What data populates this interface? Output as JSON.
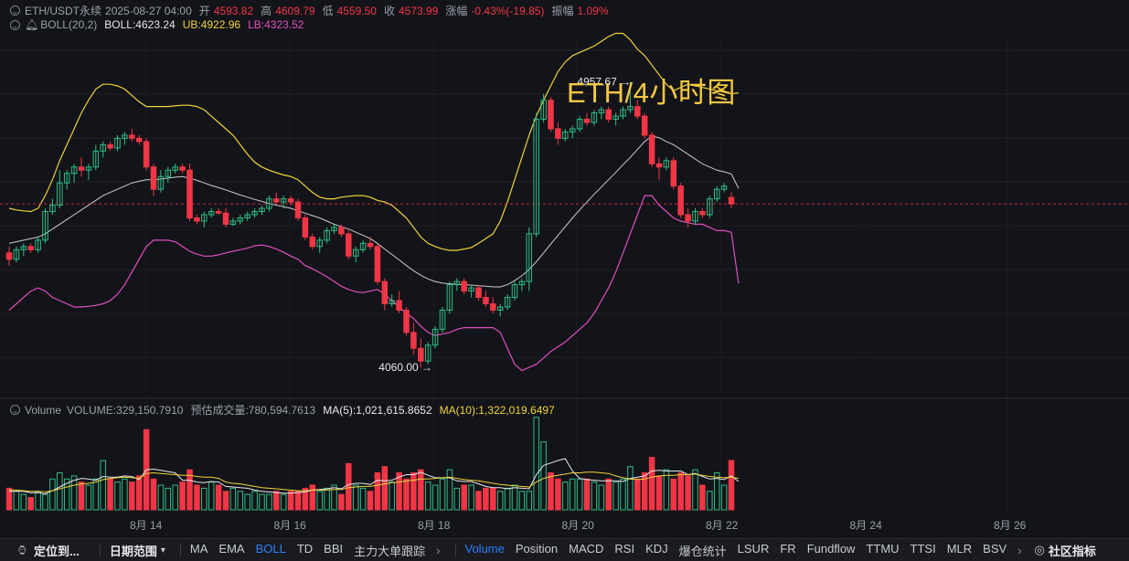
{
  "header": {
    "symbol": "ETH/USDT永续",
    "datetime": "2025-08-27 04:00",
    "open_label": "开",
    "open": "4593.82",
    "high_label": "高",
    "high": "4609.79",
    "low_label": "低",
    "low": "4559.50",
    "close_label": "收",
    "close": "4573.99",
    "change_label": "涨幅",
    "change": "-0.43%(-19.85)",
    "amp_label": "振幅",
    "amp": "1.09%"
  },
  "boll": {
    "label": "BOLL(20,2)",
    "boll_text": "BOLL:4623.24",
    "ub_text": "UB:4922.96",
    "lb_text": "LB:4323.52",
    "colors": {
      "mid": "#c9ccd2",
      "ub": "#f0d23c",
      "lb": "#e04fbf"
    }
  },
  "title": "ETH/4小时图",
  "annotations": {
    "high": "4957.67",
    "low": "4060.00"
  },
  "volume": {
    "label": "Volume",
    "vol_text": "VOLUME:329,150.7910",
    "est_text": "预估成交量:780,594.7613",
    "ma5_text": "MA(5):1,021,615.8652",
    "ma10_text": "MA(10):1,322,019.6497"
  },
  "x_labels": [
    "8月 14",
    "8月 16",
    "8月 18",
    "8月 20",
    "8月 22",
    "8月 24",
    "8月 26"
  ],
  "bottom_bar": {
    "locate": "定位到...",
    "range": "日期范围",
    "indicators": [
      "MA",
      "EMA",
      "BOLL",
      "TD",
      "BBI",
      "主力大单跟踪"
    ],
    "subindicators": [
      "Volume",
      "Position",
      "MACD",
      "RSI",
      "KDJ",
      "爆仓统计",
      "LSUR",
      "FR",
      "Fundflow",
      "TTMU",
      "TTSI",
      "MLR",
      "BSV"
    ],
    "active_main": "BOLL",
    "active_sub": "Volume",
    "community": "社区指标"
  },
  "chart_data": {
    "type": "candlestick",
    "title": "ETH/4小时图",
    "interval": "4h",
    "candles": [
      [
        4420,
        4440,
        4380,
        4400
      ],
      [
        4400,
        4440,
        4390,
        4430
      ],
      [
        4430,
        4450,
        4410,
        4440
      ],
      [
        4440,
        4450,
        4420,
        4430
      ],
      [
        4430,
        4470,
        4420,
        4460
      ],
      [
        4460,
        4560,
        4450,
        4550
      ],
      [
        4550,
        4590,
        4540,
        4570
      ],
      [
        4570,
        4680,
        4560,
        4640
      ],
      [
        4640,
        4680,
        4620,
        4670
      ],
      [
        4670,
        4700,
        4640,
        4690
      ],
      [
        4690,
        4720,
        4660,
        4680
      ],
      [
        4680,
        4700,
        4650,
        4690
      ],
      [
        4690,
        4760,
        4680,
        4740
      ],
      [
        4740,
        4770,
        4720,
        4760
      ],
      [
        4760,
        4770,
        4740,
        4750
      ],
      [
        4750,
        4790,
        4740,
        4780
      ],
      [
        4780,
        4800,
        4760,
        4790
      ],
      [
        4790,
        4810,
        4770,
        4780
      ],
      [
        4780,
        4790,
        4760,
        4770
      ],
      [
        4770,
        4780,
        4680,
        4690
      ],
      [
        4690,
        4700,
        4600,
        4620
      ],
      [
        4620,
        4680,
        4610,
        4660
      ],
      [
        4660,
        4690,
        4640,
        4680
      ],
      [
        4680,
        4700,
        4670,
        4690
      ],
      [
        4690,
        4700,
        4670,
        4680
      ],
      [
        4680,
        4700,
        4520,
        4530
      ],
      [
        4530,
        4540,
        4510,
        4520
      ],
      [
        4520,
        4550,
        4500,
        4540
      ],
      [
        4540,
        4560,
        4530,
        4550
      ],
      [
        4550,
        4560,
        4540,
        4545
      ],
      [
        4545,
        4560,
        4500,
        4510
      ],
      [
        4510,
        4530,
        4505,
        4520
      ],
      [
        4520,
        4540,
        4510,
        4530
      ],
      [
        4530,
        4550,
        4520,
        4540
      ],
      [
        4540,
        4560,
        4530,
        4550
      ],
      [
        4550,
        4570,
        4540,
        4560
      ],
      [
        4560,
        4600,
        4550,
        4590
      ],
      [
        4590,
        4610,
        4570,
        4580
      ],
      [
        4580,
        4600,
        4560,
        4590
      ],
      [
        4590,
        4600,
        4570,
        4580
      ],
      [
        4580,
        4590,
        4520,
        4530
      ],
      [
        4530,
        4540,
        4460,
        4470
      ],
      [
        4470,
        4480,
        4430,
        4440
      ],
      [
        4440,
        4470,
        4420,
        4460
      ],
      [
        4460,
        4500,
        4450,
        4490
      ],
      [
        4490,
        4510,
        4480,
        4500
      ],
      [
        4500,
        4510,
        4470,
        4480
      ],
      [
        4480,
        4490,
        4400,
        4410
      ],
      [
        4410,
        4440,
        4390,
        4430
      ],
      [
        4430,
        4460,
        4420,
        4450
      ],
      [
        4450,
        4470,
        4430,
        4440
      ],
      [
        4440,
        4450,
        4320,
        4330
      ],
      [
        4330,
        4340,
        4240,
        4260
      ],
      [
        4260,
        4290,
        4250,
        4270
      ],
      [
        4270,
        4300,
        4230,
        4240
      ],
      [
        4240,
        4250,
        4160,
        4170
      ],
      [
        4170,
        4200,
        4100,
        4120
      ],
      [
        4120,
        4150,
        4060,
        4080
      ],
      [
        4080,
        4140,
        4070,
        4130
      ],
      [
        4130,
        4190,
        4120,
        4180
      ],
      [
        4180,
        4250,
        4170,
        4240
      ],
      [
        4240,
        4330,
        4230,
        4320
      ],
      [
        4320,
        4340,
        4300,
        4330
      ],
      [
        4330,
        4340,
        4290,
        4300
      ],
      [
        4300,
        4320,
        4280,
        4310
      ],
      [
        4310,
        4320,
        4270,
        4280
      ],
      [
        4280,
        4300,
        4250,
        4260
      ],
      [
        4260,
        4280,
        4230,
        4240
      ],
      [
        4240,
        4260,
        4220,
        4250
      ],
      [
        4250,
        4290,
        4240,
        4280
      ],
      [
        4280,
        4330,
        4270,
        4320
      ],
      [
        4320,
        4340,
        4300,
        4330
      ],
      [
        4330,
        4500,
        4300,
        4480
      ],
      [
        4480,
        4860,
        4470,
        4840
      ],
      [
        4840,
        4920,
        4830,
        4900
      ],
      [
        4900,
        4910,
        4800,
        4810
      ],
      [
        4810,
        4830,
        4760,
        4780
      ],
      [
        4780,
        4810,
        4770,
        4800
      ],
      [
        4800,
        4820,
        4780,
        4810
      ],
      [
        4810,
        4850,
        4800,
        4840
      ],
      [
        4840,
        4860,
        4820,
        4830
      ],
      [
        4830,
        4870,
        4820,
        4860
      ],
      [
        4860,
        4880,
        4840,
        4870
      ],
      [
        4870,
        4880,
        4830,
        4840
      ],
      [
        4840,
        4860,
        4820,
        4850
      ],
      [
        4850,
        4880,
        4840,
        4870
      ],
      [
        4870,
        4958,
        4860,
        4880
      ],
      [
        4880,
        4900,
        4840,
        4850
      ],
      [
        4850,
        4860,
        4780,
        4790
      ],
      [
        4790,
        4800,
        4690,
        4700
      ],
      [
        4700,
        4720,
        4650,
        4690
      ],
      [
        4690,
        4720,
        4680,
        4710
      ],
      [
        4710,
        4720,
        4620,
        4630
      ],
      [
        4630,
        4640,
        4530,
        4540
      ],
      [
        4540,
        4560,
        4500,
        4520
      ],
      [
        4520,
        4560,
        4510,
        4550
      ],
      [
        4550,
        4560,
        4530,
        4540
      ],
      [
        4540,
        4600,
        4530,
        4590
      ],
      [
        4590,
        4630,
        4580,
        4620
      ],
      [
        4620,
        4640,
        4610,
        4630
      ],
      [
        4594,
        4610,
        4560,
        4574
      ]
    ],
    "boll_mid": [
      4450,
      4455,
      4460,
      4465,
      4470,
      4480,
      4495,
      4510,
      4525,
      4540,
      4555,
      4570,
      4585,
      4600,
      4610,
      4620,
      4630,
      4640,
      4645,
      4650,
      4650,
      4652,
      4655,
      4658,
      4660,
      4655,
      4648,
      4640,
      4632,
      4625,
      4618,
      4610,
      4602,
      4595,
      4588,
      4582,
      4575,
      4570,
      4565,
      4560,
      4552,
      4545,
      4537,
      4530,
      4520,
      4510,
      4502,
      4495,
      4485,
      4475,
      4465,
      4450,
      4432,
      4415,
      4398,
      4380,
      4364,
      4350,
      4338,
      4330,
      4325,
      4323,
      4321,
      4320,
      4319,
      4317,
      4315,
      4313,
      4313,
      4320,
      4333,
      4348,
      4368,
      4392,
      4420,
      4448,
      4475,
      4502,
      4530,
      4555,
      4580,
      4604,
      4627,
      4650,
      4673,
      4697,
      4720,
      4745,
      4770,
      4787,
      4782,
      4770,
      4760,
      4745,
      4730,
      4715,
      4700,
      4690,
      4680,
      4675,
      4668,
      4623
    ],
    "boll_ub": [
      4560,
      4555,
      4552,
      4550,
      4560,
      4600,
      4650,
      4710,
      4760,
      4810,
      4860,
      4900,
      4935,
      4950,
      4950,
      4945,
      4935,
      4915,
      4895,
      4880,
      4880,
      4880,
      4880,
      4882,
      4884,
      4884,
      4880,
      4870,
      4850,
      4830,
      4810,
      4790,
      4760,
      4730,
      4705,
      4690,
      4680,
      4672,
      4665,
      4660,
      4650,
      4630,
      4610,
      4595,
      4590,
      4590,
      4595,
      4598,
      4600,
      4600,
      4595,
      4585,
      4580,
      4570,
      4550,
      4530,
      4500,
      4470,
      4450,
      4440,
      4432,
      4428,
      4428,
      4432,
      4437,
      4450,
      4465,
      4480,
      4520,
      4580,
      4650,
      4720,
      4790,
      4850,
      4900,
      4945,
      4990,
      5020,
      5040,
      5050,
      5060,
      5070,
      5085,
      5100,
      5110,
      5110,
      5090,
      5060,
      5040,
      5010,
      4980,
      4950,
      4930,
      4940,
      4950,
      4945,
      4940,
      4935,
      4930,
      4925,
      4920,
      4923
    ],
    "boll_lb": [
      4240,
      4260,
      4280,
      4300,
      4310,
      4300,
      4280,
      4270,
      4260,
      4250,
      4250,
      4252,
      4255,
      4260,
      4270,
      4290,
      4320,
      4360,
      4400,
      4440,
      4460,
      4460,
      4460,
      4455,
      4440,
      4425,
      4416,
      4410,
      4410,
      4414,
      4420,
      4425,
      4430,
      4435,
      4442,
      4445,
      4440,
      4432,
      4422,
      4410,
      4400,
      4380,
      4370,
      4358,
      4345,
      4330,
      4315,
      4305,
      4298,
      4295,
      4300,
      4305,
      4290,
      4270,
      4250,
      4230,
      4214,
      4190,
      4170,
      4160,
      4165,
      4170,
      4180,
      4185,
      4185,
      4185,
      4185,
      4185,
      4170,
      4120,
      4070,
      4050,
      4060,
      4070,
      4090,
      4110,
      4125,
      4140,
      4160,
      4180,
      4200,
      4230,
      4270,
      4310,
      4360,
      4420,
      4480,
      4540,
      4600,
      4600,
      4570,
      4550,
      4530,
      4520,
      4515,
      4510,
      4510,
      4500,
      4490,
      4490,
      4485,
      4324
    ],
    "volume": [
      0.7,
      0.6,
      0.5,
      0.4,
      0.6,
      0.5,
      1.0,
      1.2,
      1.0,
      1.1,
      0.9,
      0.8,
      1.0,
      1.6,
      1.0,
      0.9,
      1.0,
      0.9,
      1.1,
      2.6,
      1.0,
      0.8,
      0.7,
      0.8,
      0.9,
      1.3,
      0.8,
      0.7,
      0.9,
      0.8,
      0.6,
      0.7,
      0.6,
      0.5,
      0.6,
      0.5,
      0.5,
      0.6,
      0.5,
      0.6,
      0.6,
      0.7,
      0.8,
      0.6,
      0.7,
      0.8,
      0.5,
      1.5,
      0.8,
      0.7,
      0.6,
      1.2,
      1.4,
      0.9,
      1.2,
      1.0,
      1.2,
      1.3,
      0.9,
      0.8,
      1.0,
      1.3,
      0.7,
      0.8,
      0.8,
      0.6,
      0.7,
      0.7,
      0.6,
      0.7,
      0.8,
      0.6,
      0.6,
      3.0,
      2.2,
      1.2,
      1.0,
      0.9,
      1.0,
      1.0,
      1.0,
      0.9,
      0.8,
      1.0,
      0.9,
      1.0,
      1.4,
      1.0,
      1.2,
      1.7,
      1.1,
      1.3,
      1.0,
      1.2,
      1.1,
      1.3,
      0.8,
      0.6,
      1.2,
      0.8,
      1.6,
      0.4
    ],
    "vol_ma5": [
      0.6,
      0.6,
      0.6,
      0.55,
      0.56,
      0.52,
      0.62,
      0.74,
      0.86,
      0.96,
      1.02,
      1.0,
      0.96,
      1.08,
      1.06,
      1.06,
      1.1,
      1.08,
      0.98,
      1.3,
      1.32,
      1.28,
      1.24,
      1.2,
      0.96,
      0.96,
      0.9,
      0.88,
      0.92,
      0.9,
      0.76,
      0.74,
      0.72,
      0.7,
      0.64,
      0.6,
      0.58,
      0.56,
      0.54,
      0.54,
      0.56,
      0.58,
      0.64,
      0.66,
      0.68,
      0.72,
      0.68,
      0.82,
      0.86,
      0.86,
      0.82,
      0.96,
      0.94,
      0.96,
      1.06,
      1.14,
      1.14,
      1.22,
      1.12,
      1.04,
      1.04,
      1.04,
      0.94,
      0.92,
      0.92,
      0.84,
      0.76,
      0.72,
      0.72,
      0.68,
      0.72,
      0.7,
      0.68,
      1.14,
      1.44,
      1.52,
      1.6,
      1.66,
      1.26,
      1.02,
      0.98,
      0.96,
      0.94,
      0.94,
      0.94,
      0.92,
      1.02,
      1.06,
      1.1,
      1.26,
      1.28,
      1.26,
      1.26,
      1.26,
      1.14,
      1.18,
      1.08,
      1.0,
      1.02,
      0.98,
      1.1,
      0.92
    ],
    "vol_ma10": [
      0.65,
      0.64,
      0.62,
      0.6,
      0.6,
      0.58,
      0.62,
      0.68,
      0.74,
      0.8,
      0.84,
      0.86,
      0.9,
      0.98,
      1.02,
      1.04,
      1.06,
      1.04,
      1.02,
      1.18,
      1.2,
      1.18,
      1.16,
      1.14,
      1.12,
      1.12,
      1.08,
      1.06,
      1.06,
      1.02,
      0.9,
      0.86,
      0.84,
      0.8,
      0.76,
      0.72,
      0.7,
      0.68,
      0.66,
      0.64,
      0.62,
      0.62,
      0.64,
      0.64,
      0.64,
      0.66,
      0.66,
      0.72,
      0.74,
      0.76,
      0.76,
      0.8,
      0.84,
      0.88,
      0.9,
      0.94,
      0.96,
      1.0,
      1.0,
      1.02,
      1.04,
      1.06,
      1.02,
      0.98,
      0.96,
      0.94,
      0.9,
      0.86,
      0.82,
      0.8,
      0.78,
      0.76,
      0.74,
      0.9,
      1.02,
      1.08,
      1.12,
      1.16,
      1.2,
      1.2,
      1.22,
      1.22,
      1.2,
      1.18,
      1.1,
      1.04,
      1.0,
      0.98,
      1.0,
      1.06,
      1.1,
      1.12,
      1.12,
      1.14,
      1.14,
      1.16,
      1.12,
      1.08,
      1.06,
      1.04,
      1.06,
      1.02
    ],
    "ylim": [
      3980,
      5100
    ],
    "current_price": 4574
  }
}
